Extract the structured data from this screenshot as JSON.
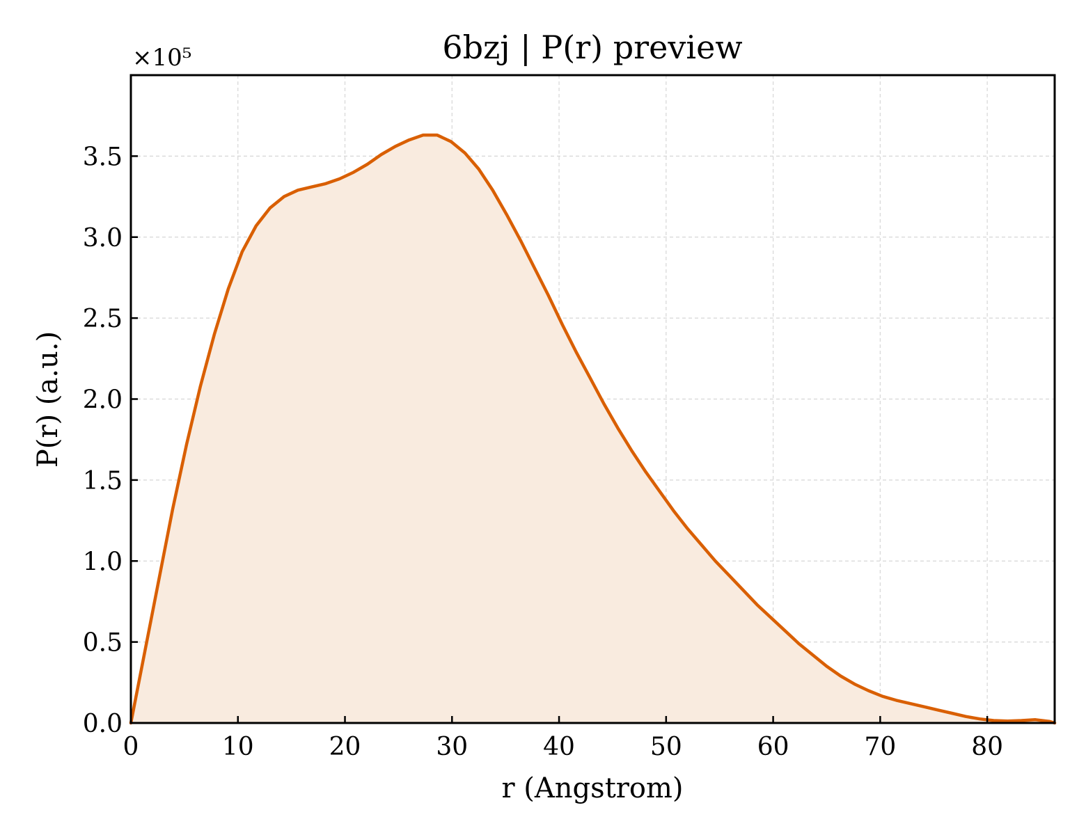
{
  "chart_data": {
    "type": "area",
    "title": "6bzj | P(r) preview",
    "xlabel": "r (Angstrom)",
    "ylabel": "P(r) (a.u.)",
    "y_scale_label": "×10⁵",
    "xlim": [
      0,
      86.3
    ],
    "ylim": [
      0,
      4.0
    ],
    "x_ticks": [
      0,
      10,
      20,
      30,
      40,
      50,
      60,
      70,
      80
    ],
    "x_tick_labels": [
      "0",
      "10",
      "20",
      "30",
      "40",
      "50",
      "60",
      "70",
      "80"
    ],
    "y_ticks": [
      0,
      0.5,
      1.0,
      1.5,
      2.0,
      2.5,
      3.0,
      3.5
    ],
    "y_tick_labels": [
      "0.0",
      "0.5",
      "1.0",
      "1.5",
      "2.0",
      "2.5",
      "3.0",
      "3.5"
    ],
    "grid": true,
    "colors": {
      "line": "#d95f02",
      "fill": "#f9ebdf"
    },
    "series": [
      {
        "x": [
          0,
          1.3,
          2.6,
          3.9,
          5.2,
          6.5,
          7.8,
          9.1,
          10.4,
          11.7,
          13.0,
          14.3,
          15.6,
          16.9,
          18.2,
          19.5,
          20.8,
          22.1,
          23.4,
          24.7,
          26.0,
          27.3,
          28.6,
          29.9,
          31.2,
          32.5,
          33.8,
          35.1,
          36.4,
          37.7,
          39.0,
          40.3,
          41.6,
          42.9,
          44.2,
          45.5,
          46.8,
          48.1,
          49.4,
          50.7,
          52.0,
          53.3,
          54.6,
          55.9,
          57.2,
          58.5,
          59.8,
          61.1,
          62.4,
          63.7,
          65.0,
          66.3,
          67.6,
          68.9,
          70.2,
          71.5,
          72.8,
          74.1,
          75.4,
          76.7,
          78.0,
          79.3,
          80.6,
          81.9,
          83.2,
          84.5,
          85.8,
          86.3
        ],
        "y": [
          0,
          0.44,
          0.88,
          1.32,
          1.72,
          2.08,
          2.4,
          2.68,
          2.91,
          3.07,
          3.18,
          3.25,
          3.29,
          3.31,
          3.33,
          3.36,
          3.4,
          3.45,
          3.51,
          3.56,
          3.6,
          3.63,
          3.63,
          3.59,
          3.52,
          3.42,
          3.29,
          3.14,
          2.98,
          2.81,
          2.64,
          2.46,
          2.29,
          2.13,
          1.97,
          1.82,
          1.68,
          1.55,
          1.43,
          1.31,
          1.2,
          1.1,
          1.0,
          0.91,
          0.82,
          0.73,
          0.65,
          0.57,
          0.49,
          0.42,
          0.35,
          0.29,
          0.24,
          0.2,
          0.165,
          0.14,
          0.12,
          0.1,
          0.08,
          0.06,
          0.04,
          0.025,
          0.015,
          0.012,
          0.015,
          0.02,
          0.01,
          0
        ]
      }
    ]
  }
}
